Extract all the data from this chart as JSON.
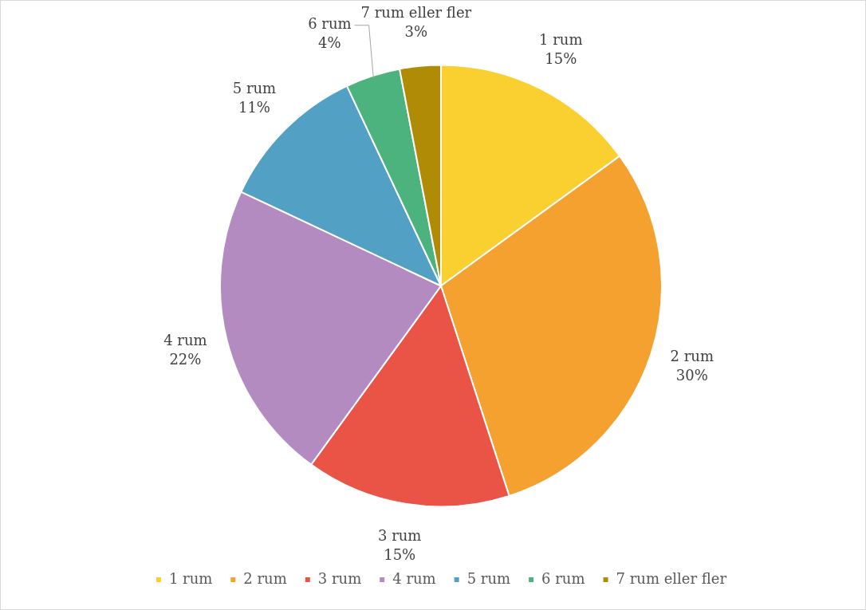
{
  "chart_data": {
    "type": "pie",
    "categories": [
      "1 rum",
      "2 rum",
      "3 rum",
      "4 rum",
      "5 rum",
      "6 rum",
      "7 rum eller fler"
    ],
    "values": [
      15,
      30,
      15,
      22,
      11,
      4,
      3
    ],
    "colors": [
      "#f9d030",
      "#f4a130",
      "#ea5446",
      "#b38bc0",
      "#52a1c5",
      "#4db37e",
      "#b08b05"
    ],
    "value_labels": [
      "15%",
      "30%",
      "15%",
      "22%",
      "11%",
      "4%",
      "3%"
    ],
    "legend": "bottom"
  }
}
